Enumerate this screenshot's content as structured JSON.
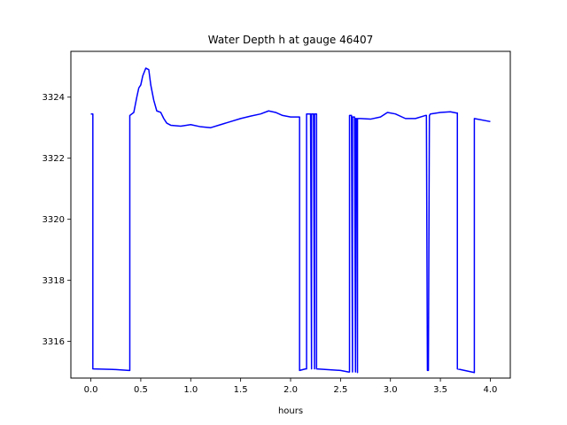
{
  "chart_data": {
    "type": "line",
    "title": "Water Depth h at gauge 46407",
    "xlabel": "hours",
    "ylabel": "",
    "xlim": [
      -0.2,
      4.2
    ],
    "ylim": [
      3314.8,
      3325.5
    ],
    "xticks": [
      0.0,
      0.5,
      1.0,
      1.5,
      2.0,
      2.5,
      3.0,
      3.5,
      4.0
    ],
    "xtick_labels": [
      "0.0",
      "0.5",
      "1.0",
      "1.5",
      "2.0",
      "2.5",
      "3.0",
      "3.5",
      "4.0"
    ],
    "yticks": [
      3316,
      3318,
      3320,
      3322,
      3324
    ],
    "ytick_labels": [
      "3316",
      "3318",
      "3320",
      "3322",
      "3324"
    ],
    "grid": false,
    "series": [
      {
        "color": "#0000ff",
        "x": [
          0.0,
          0.02,
          0.02,
          0.25,
          0.38,
          0.39,
          0.39,
          0.43,
          0.46,
          0.48,
          0.5,
          0.52,
          0.55,
          0.58,
          0.6,
          0.63,
          0.66,
          0.7,
          0.73,
          0.76,
          0.8,
          0.9,
          1.0,
          1.1,
          1.2,
          1.3,
          1.4,
          1.5,
          1.6,
          1.7,
          1.78,
          1.85,
          1.92,
          2.0,
          2.08,
          2.09,
          2.09,
          2.15,
          2.16,
          2.16,
          2.2,
          2.21,
          2.21,
          2.23,
          2.24,
          2.24,
          2.26,
          2.26,
          2.5,
          2.58,
          2.59,
          2.59,
          2.61,
          2.62,
          2.62,
          2.64,
          2.65,
          2.65,
          2.66,
          2.67,
          2.67,
          2.69,
          2.7,
          2.8,
          2.9,
          2.97,
          3.05,
          3.15,
          3.25,
          3.35,
          3.36,
          3.37,
          3.38,
          3.39,
          3.4,
          3.5,
          3.6,
          3.66,
          3.67,
          3.67,
          3.84,
          3.84,
          4.0
        ],
        "y": [
          3323.45,
          3323.45,
          3315.1,
          3315.08,
          3315.05,
          3315.05,
          3323.4,
          3323.5,
          3324.0,
          3324.3,
          3324.4,
          3324.7,
          3324.95,
          3324.9,
          3324.4,
          3323.9,
          3323.55,
          3323.5,
          3323.3,
          3323.15,
          3323.08,
          3323.05,
          3323.1,
          3323.03,
          3323.0,
          3323.1,
          3323.2,
          3323.3,
          3323.38,
          3323.45,
          3323.55,
          3323.5,
          3323.4,
          3323.35,
          3323.35,
          3323.35,
          3315.05,
          3315.1,
          3315.1,
          3323.45,
          3323.45,
          3315.1,
          3323.45,
          3323.45,
          3315.1,
          3323.45,
          3323.45,
          3315.1,
          3315.05,
          3315.0,
          3315.0,
          3323.4,
          3323.4,
          3315.0,
          3323.35,
          3323.35,
          3315.0,
          3323.3,
          3323.3,
          3314.98,
          3323.3,
          3323.3,
          3323.3,
          3323.28,
          3323.35,
          3323.5,
          3323.45,
          3323.3,
          3323.3,
          3323.4,
          3323.4,
          3315.05,
          3315.05,
          3323.4,
          3323.45,
          3323.5,
          3323.52,
          3323.48,
          3323.48,
          3315.1,
          3314.98,
          3323.3,
          3323.2
        ]
      }
    ]
  }
}
